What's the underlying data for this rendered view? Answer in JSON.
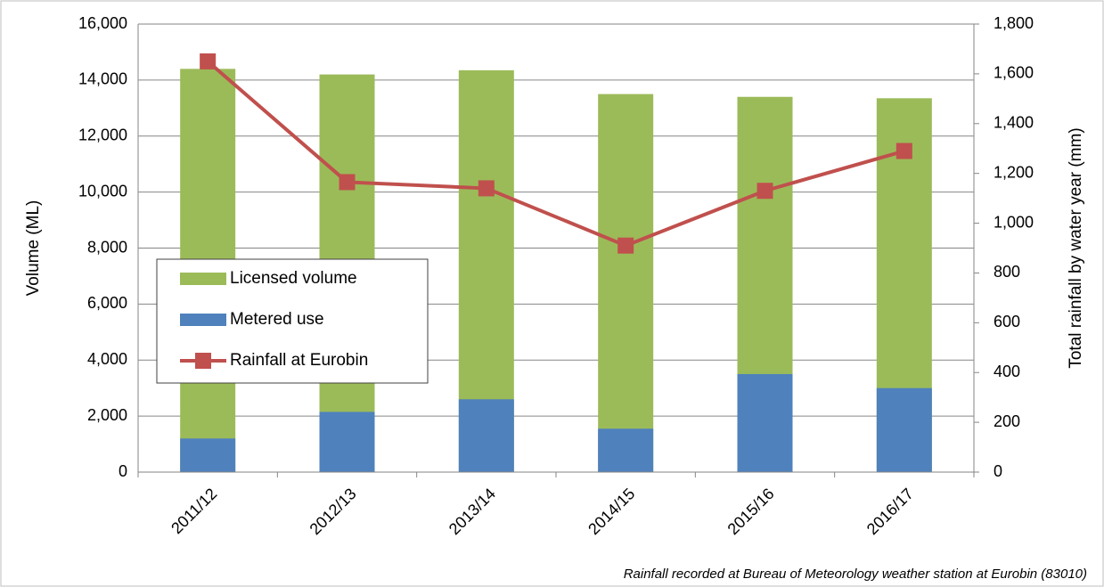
{
  "chart_data": {
    "type": "bar-line",
    "categories": [
      "2011/12",
      "2012/13",
      "2013/14",
      "2014/15",
      "2015/16",
      "2016/17"
    ],
    "series": [
      {
        "name": "Licensed volume",
        "color": "#9bbb59",
        "type": "bar",
        "values": [
          14400,
          14200,
          14350,
          13500,
          13400,
          13350
        ]
      },
      {
        "name": "Metered use",
        "color": "#4f81bd",
        "type": "bar",
        "values": [
          1200,
          2150,
          2600,
          1550,
          3500,
          3000
        ]
      },
      {
        "name": "Rainfall at Eurobin",
        "color": "#c0504d",
        "type": "line",
        "axis": "y2",
        "values": [
          1650,
          1165,
          1140,
          910,
          1130,
          1290
        ]
      }
    ],
    "ylabel": "Volume (ML)",
    "y2label": "Total rainfall by water year (mm)",
    "ylim": [
      0,
      16000
    ],
    "yticks": [
      0,
      {
        "value": 2000,
        "label": "2,000"
      },
      {
        "value": 4000,
        "label": "4,000"
      },
      {
        "value": 6000,
        "label": "6,000"
      },
      {
        "value": 8000,
        "label": "8,000"
      },
      {
        "value": 10000,
        "label": "10,000"
      },
      {
        "value": 12000,
        "label": "12,000"
      },
      {
        "value": 14000,
        "label": "14,000"
      },
      {
        "value": 16000,
        "label": "16,000"
      }
    ],
    "y2lim": [
      0,
      1800
    ],
    "y2ticks": [
      0,
      200,
      400,
      600,
      800,
      {
        "value": 1000,
        "label": "1,000"
      },
      {
        "value": 1200,
        "label": "1,200"
      },
      {
        "value": 1400,
        "label": "1,400"
      },
      {
        "value": 1600,
        "label": "1,600"
      },
      {
        "value": 1800,
        "label": "1,800"
      }
    ],
    "grid": true,
    "note": "Rainfall recorded at Bureau of Meteorology weather station at Eurobin (83010)"
  }
}
